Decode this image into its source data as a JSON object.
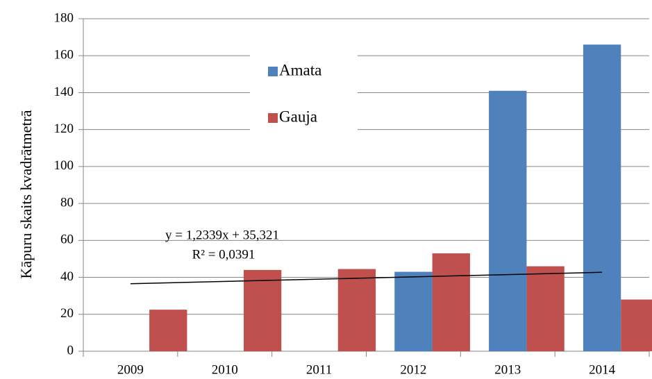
{
  "chart_data": {
    "type": "bar",
    "y_label": "Kāpuru skaits kvadrātmetrā",
    "categories": [
      "2009",
      "2010",
      "2011",
      "2012",
      "2013",
      "2014"
    ],
    "series": [
      {
        "name": "Amata",
        "color": "#4f81bd",
        "values": [
          null,
          null,
          null,
          43,
          141,
          166
        ]
      },
      {
        "name": "Gauja",
        "color": "#c0504d",
        "values": [
          22.5,
          44,
          44.5,
          53,
          46,
          28
        ]
      }
    ],
    "ylim": [
      0,
      180
    ],
    "yticks": [
      0,
      20,
      40,
      60,
      80,
      100,
      120,
      140,
      160,
      180
    ],
    "grid": true,
    "legend": "upper center",
    "trendline": {
      "equation": "y = 1,2339x + 35,321",
      "r_squared": "R² = 0,0391",
      "slope": 1.2339,
      "intercept": 35.321
    }
  }
}
